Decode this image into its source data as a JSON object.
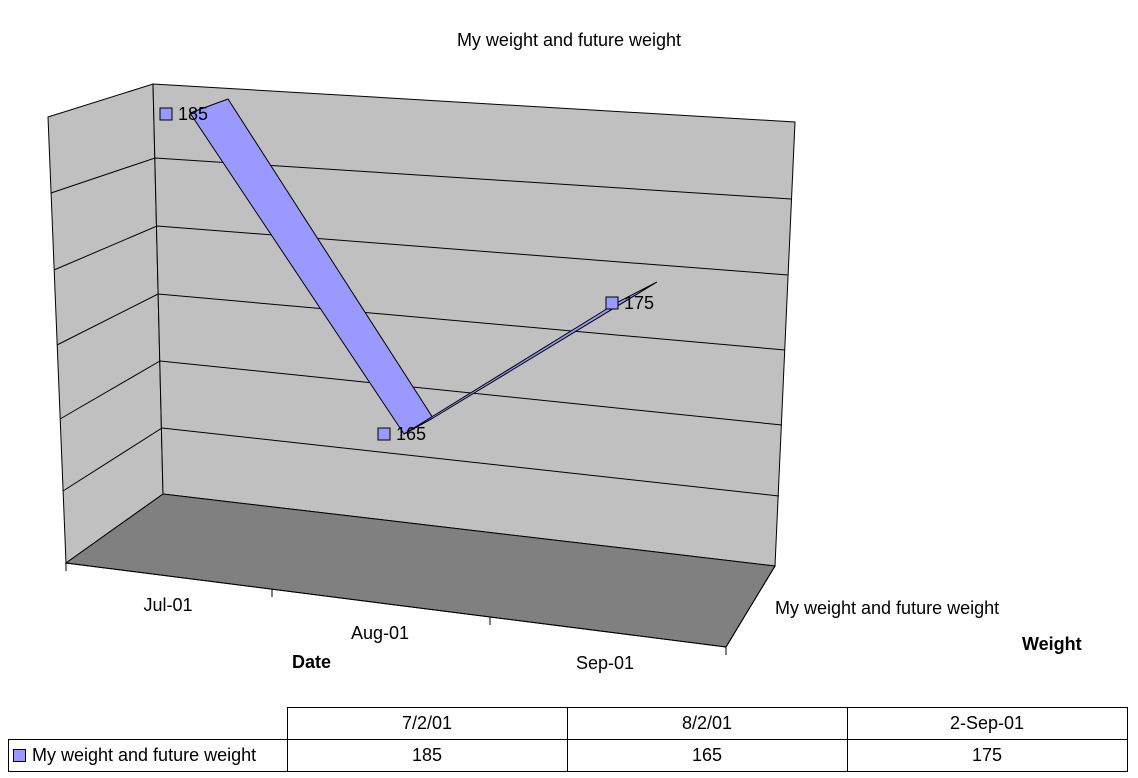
{
  "chart_data": {
    "type": "line",
    "style": "3d-ribbon",
    "title": "My weight and future weight",
    "xlabel": "Date",
    "zlabel": "Weight",
    "categories": [
      "Jul-01",
      "Aug-01",
      "Sep-01"
    ],
    "series": [
      {
        "name": "My weight and future weight",
        "values": [
          185,
          165,
          175
        ],
        "color": "#9999ff"
      }
    ],
    "data_labels": [
      "185",
      "165",
      "175"
    ],
    "grid": true,
    "legend": "data-table",
    "colors": {
      "wall": "#c0c0c0",
      "floor": "#808080",
      "series": "#9999ff"
    },
    "data_table": {
      "headers": [
        "7/2/01",
        "8/2/01",
        "2-Sep-01"
      ],
      "rows": [
        {
          "label": "My weight and future weight",
          "values": [
            "185",
            "165",
            "175"
          ]
        }
      ]
    }
  }
}
